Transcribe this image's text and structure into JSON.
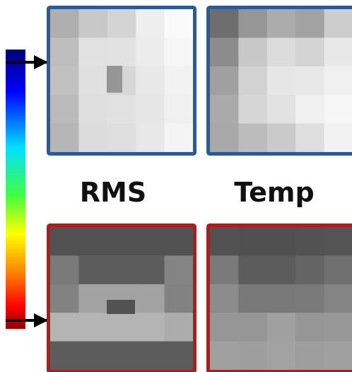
{
  "labels": {
    "left": "RMS",
    "right": "Temp"
  }
}
